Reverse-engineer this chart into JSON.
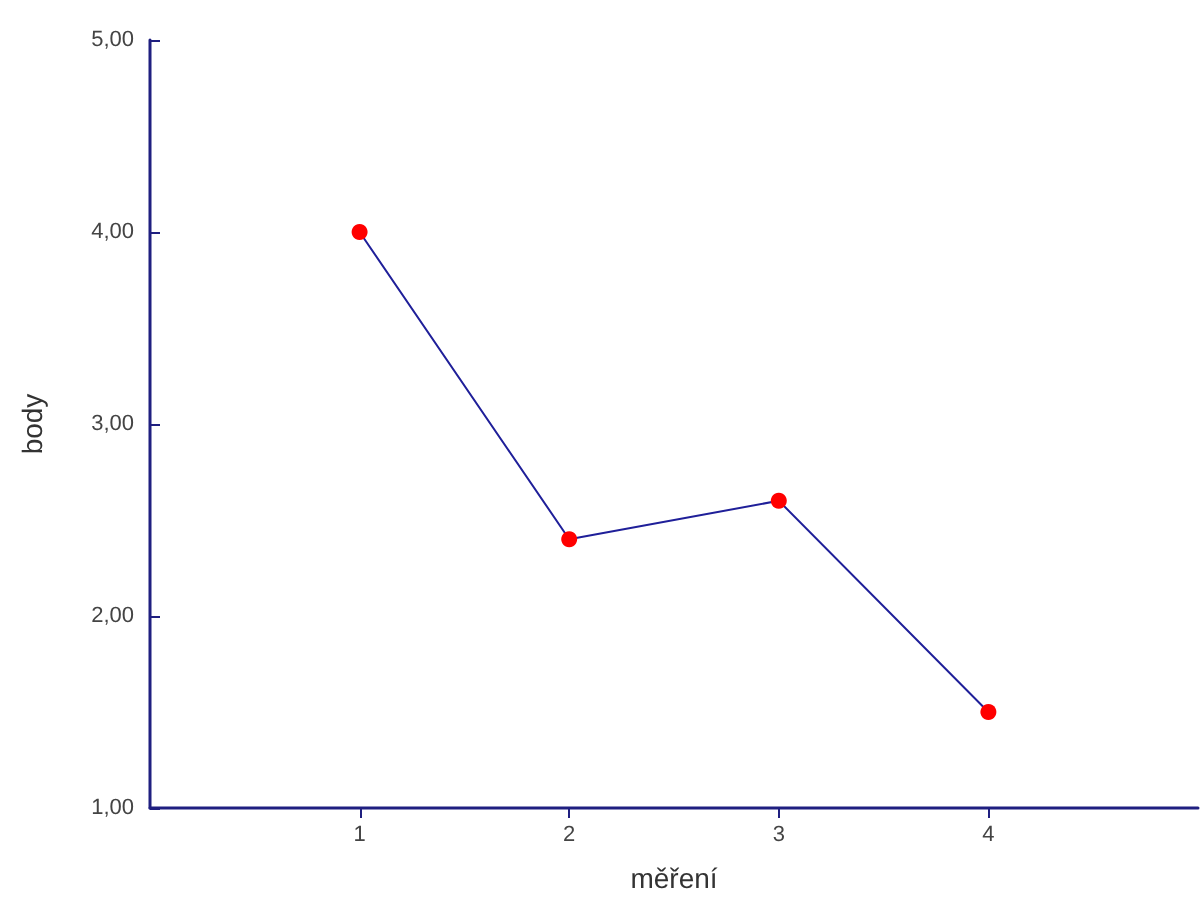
{
  "chart_data": {
    "type": "line",
    "xlabel": "měření",
    "ylabel": "body",
    "x": [
      1,
      2,
      3,
      4
    ],
    "series": [
      {
        "color": "#1f1f99",
        "values": [
          4.0,
          2.4,
          2.6,
          1.5
        ]
      }
    ],
    "xlim": [
      0,
      5
    ],
    "xticks": [
      1,
      2,
      3,
      4
    ],
    "ylim": [
      1,
      5
    ],
    "yticks": [
      {
        "value": 1,
        "label": "1,00"
      },
      {
        "value": 2,
        "label": "2,00"
      },
      {
        "value": 3,
        "label": "3,00"
      },
      {
        "value": 4,
        "label": "4,00"
      },
      {
        "value": 5,
        "label": "5,00"
      }
    ],
    "grid": false,
    "marker": "circle",
    "line_style": "solid"
  }
}
